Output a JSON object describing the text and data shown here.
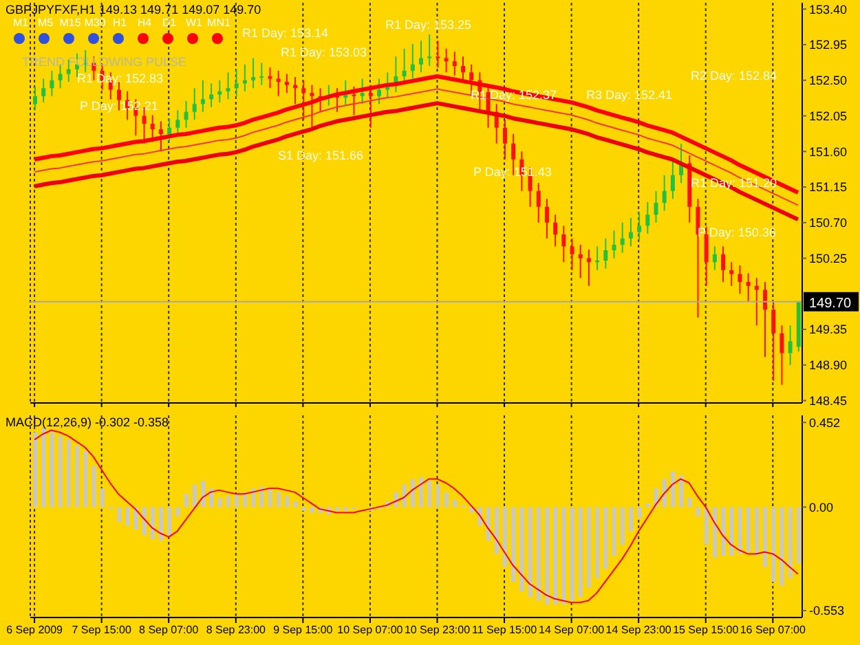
{
  "chart_data": [
    {
      "type": "candlestick",
      "title": "GBPJPYFXF,H1  149.13 149.71 149.07 149.70",
      "tick_labels": "y",
      "grid": "x",
      "categories": [
        null,
        null,
        null,
        null,
        null,
        null,
        null,
        null,
        null,
        null,
        null,
        null,
        null,
        null,
        null,
        null,
        null,
        null,
        null,
        null,
        null,
        null,
        null,
        null,
        null,
        null,
        null,
        null,
        null,
        null,
        null,
        null,
        null,
        null,
        null,
        null,
        null,
        null,
        null,
        null,
        null,
        null,
        null,
        null,
        null,
        null,
        null,
        null,
        null,
        null,
        null,
        null,
        null,
        null,
        null,
        null,
        null,
        null,
        null,
        null,
        null,
        null,
        null,
        null,
        null,
        null,
        null,
        null,
        null,
        null,
        null,
        null,
        null,
        null,
        null,
        null,
        null,
        null,
        null,
        null,
        null,
        null,
        null,
        null,
        null,
        null,
        null,
        null,
        null,
        null,
        null,
        null
      ],
      "ohlc": [
        [
          152.2,
          152.42,
          152.12,
          152.3
        ],
        [
          152.3,
          152.52,
          152.22,
          152.4
        ],
        [
          152.4,
          152.62,
          152.3,
          152.5
        ],
        [
          152.5,
          152.7,
          152.4,
          152.58
        ],
        [
          152.58,
          152.76,
          152.48,
          152.64
        ],
        [
          152.64,
          152.84,
          152.54,
          152.7
        ],
        [
          152.7,
          152.88,
          152.6,
          152.72
        ],
        [
          152.72,
          152.8,
          152.5,
          152.62
        ],
        [
          152.62,
          152.7,
          152.38,
          152.5
        ],
        [
          152.5,
          152.6,
          152.26,
          152.38
        ],
        [
          152.38,
          152.48,
          152.12,
          152.25
        ],
        [
          152.25,
          152.36,
          152.0,
          152.15
        ],
        [
          152.15,
          152.26,
          151.8,
          152.05
        ],
        [
          152.05,
          152.16,
          151.7,
          151.95
        ],
        [
          151.95,
          152.06,
          151.72,
          151.88
        ],
        [
          151.88,
          151.98,
          151.6,
          151.82
        ],
        [
          151.82,
          152.02,
          151.72,
          151.9
        ],
        [
          151.9,
          152.12,
          151.8,
          152.0
        ],
        [
          152.0,
          152.24,
          151.9,
          152.1
        ],
        [
          152.1,
          152.4,
          152.0,
          152.2
        ],
        [
          152.2,
          152.5,
          152.1,
          152.26
        ],
        [
          152.26,
          152.46,
          152.16,
          152.32
        ],
        [
          152.32,
          152.5,
          152.22,
          152.36
        ],
        [
          152.36,
          152.6,
          152.26,
          152.4
        ],
        [
          152.4,
          152.64,
          152.3,
          152.46
        ],
        [
          152.46,
          152.7,
          152.36,
          152.5
        ],
        [
          152.5,
          152.78,
          152.4,
          152.54
        ],
        [
          152.54,
          152.72,
          152.44,
          152.55
        ],
        [
          152.55,
          152.66,
          152.4,
          152.52
        ],
        [
          152.52,
          152.62,
          152.3,
          152.48
        ],
        [
          152.48,
          152.58,
          152.34,
          152.44
        ],
        [
          152.44,
          152.54,
          152.2,
          152.4
        ],
        [
          152.4,
          152.5,
          152.0,
          152.34
        ],
        [
          152.34,
          152.44,
          151.9,
          152.3
        ],
        [
          152.3,
          152.4,
          152.1,
          152.28
        ],
        [
          152.28,
          152.44,
          152.18,
          152.3
        ],
        [
          152.3,
          152.4,
          152.1,
          152.28
        ],
        [
          152.28,
          152.5,
          152.18,
          152.32
        ],
        [
          152.32,
          152.42,
          152.06,
          152.3
        ],
        [
          152.3,
          152.52,
          152.2,
          152.34
        ],
        [
          152.34,
          152.44,
          151.9,
          152.3
        ],
        [
          152.3,
          152.52,
          152.2,
          152.38
        ],
        [
          152.38,
          152.6,
          152.28,
          152.45
        ],
        [
          152.45,
          152.8,
          152.35,
          152.55
        ],
        [
          152.55,
          152.9,
          152.45,
          152.62
        ],
        [
          152.62,
          152.96,
          152.52,
          152.7
        ],
        [
          152.7,
          153.0,
          152.6,
          152.78
        ],
        [
          152.78,
          153.08,
          152.68,
          152.8
        ],
        [
          152.8,
          153.0,
          152.66,
          152.78
        ],
        [
          152.78,
          152.9,
          152.6,
          152.74
        ],
        [
          152.74,
          152.86,
          152.56,
          152.68
        ],
        [
          152.68,
          152.8,
          152.48,
          152.6
        ],
        [
          152.6,
          152.7,
          152.3,
          152.5
        ],
        [
          152.5,
          152.6,
          152.1,
          152.35
        ],
        [
          152.35,
          152.45,
          151.9,
          152.1
        ],
        [
          152.1,
          152.2,
          151.7,
          151.9
        ],
        [
          151.9,
          152.0,
          151.5,
          151.7
        ],
        [
          151.7,
          151.82,
          151.3,
          151.5
        ],
        [
          151.5,
          151.6,
          151.1,
          151.3
        ],
        [
          151.3,
          151.4,
          150.9,
          151.1
        ],
        [
          151.1,
          151.2,
          150.7,
          150.9
        ],
        [
          150.9,
          151.0,
          150.5,
          150.7
        ],
        [
          150.7,
          150.8,
          150.4,
          150.55
        ],
        [
          150.55,
          150.66,
          150.2,
          150.4
        ],
        [
          150.4,
          150.5,
          150.1,
          150.3
        ],
        [
          150.3,
          150.42,
          150.0,
          150.25
        ],
        [
          150.25,
          150.36,
          149.9,
          150.2
        ],
        [
          150.2,
          150.4,
          150.1,
          150.22
        ],
        [
          150.22,
          150.5,
          150.12,
          150.35
        ],
        [
          150.35,
          150.6,
          150.25,
          150.42
        ],
        [
          150.42,
          150.7,
          150.32,
          150.5
        ],
        [
          150.5,
          150.76,
          150.4,
          150.58
        ],
        [
          150.58,
          150.84,
          150.48,
          150.66
        ],
        [
          150.66,
          150.96,
          150.56,
          150.8
        ],
        [
          150.8,
          151.1,
          150.7,
          150.95
        ],
        [
          150.95,
          151.3,
          150.85,
          151.1
        ],
        [
          151.1,
          151.5,
          151.0,
          151.3
        ],
        [
          151.3,
          151.7,
          151.2,
          151.45
        ],
        [
          151.45,
          151.55,
          150.7,
          150.9
        ],
        [
          150.9,
          151.0,
          149.5,
          150.55
        ],
        [
          150.55,
          150.65,
          149.9,
          150.2
        ],
        [
          150.2,
          150.4,
          150.1,
          150.3
        ],
        [
          150.3,
          150.4,
          149.95,
          150.1
        ],
        [
          150.1,
          150.2,
          149.9,
          150.05
        ],
        [
          150.05,
          150.16,
          149.8,
          149.95
        ],
        [
          149.95,
          150.06,
          149.7,
          149.9
        ],
        [
          149.9,
          150.0,
          149.4,
          149.85
        ],
        [
          149.85,
          149.95,
          149.0,
          149.6
        ],
        [
          149.6,
          149.7,
          148.7,
          149.3
        ],
        [
          149.3,
          149.4,
          148.65,
          149.05
        ],
        [
          149.05,
          149.4,
          148.9,
          149.2
        ],
        [
          149.13,
          149.71,
          149.07,
          149.7
        ]
      ],
      "series": [
        {
          "type": "line",
          "color": "#ff0000",
          "values": [
            151.5,
            151.52,
            151.54,
            151.55,
            151.57,
            151.59,
            151.61,
            151.63,
            151.64,
            151.66,
            151.68,
            151.7,
            151.72,
            151.73,
            151.75,
            151.77,
            151.79,
            151.81,
            151.82,
            151.84,
            151.86,
            151.88,
            151.9,
            151.91,
            151.93,
            151.96,
            152.0,
            152.03,
            152.06,
            152.09,
            152.13,
            152.16,
            152.19,
            152.22,
            152.26,
            152.29,
            152.32,
            152.34,
            152.36,
            152.38,
            152.4,
            152.42,
            152.44,
            152.45,
            152.47,
            152.49,
            152.51,
            152.53,
            152.55,
            152.53,
            152.51,
            152.49,
            152.47,
            152.45,
            152.43,
            152.41,
            152.39,
            152.36,
            152.34,
            152.32,
            152.3,
            152.28,
            152.26,
            152.24,
            152.22,
            152.19,
            152.16,
            152.12,
            152.09,
            152.06,
            152.03,
            152.0,
            151.97,
            151.93,
            151.9,
            151.87,
            151.84,
            151.79,
            151.74,
            151.69,
            151.64,
            151.59,
            151.54,
            151.49,
            151.43,
            151.38,
            151.33,
            151.28,
            151.23,
            151.18,
            151.13,
            151.08
          ]
        },
        {
          "type": "line",
          "color": "#ff3030",
          "values": [
            151.34,
            151.36,
            151.38,
            151.39,
            151.41,
            151.43,
            151.45,
            151.47,
            151.48,
            151.5,
            151.52,
            151.54,
            151.56,
            151.57,
            151.59,
            151.61,
            151.63,
            151.65,
            151.66,
            151.68,
            151.7,
            151.72,
            151.74,
            151.75,
            151.77,
            151.8,
            151.84,
            151.87,
            151.9,
            151.93,
            151.97,
            152.0,
            152.03,
            152.06,
            152.1,
            152.13,
            152.16,
            152.18,
            152.2,
            152.22,
            152.24,
            152.26,
            152.28,
            152.29,
            152.31,
            152.33,
            152.35,
            152.37,
            152.39,
            152.37,
            152.35,
            152.33,
            152.31,
            152.29,
            152.27,
            152.25,
            152.23,
            152.2,
            152.18,
            152.16,
            152.14,
            152.12,
            152.1,
            152.08,
            152.06,
            152.03,
            152.0,
            151.96,
            151.93,
            151.9,
            151.87,
            151.84,
            151.81,
            151.77,
            151.74,
            151.71,
            151.68,
            151.63,
            151.58,
            151.53,
            151.48,
            151.43,
            151.38,
            151.33,
            151.27,
            151.22,
            151.17,
            151.12,
            151.07,
            151.02,
            150.97,
            150.92
          ]
        },
        {
          "type": "line",
          "color": "#ee0000",
          "values": [
            151.16,
            151.18,
            151.2,
            151.21,
            151.23,
            151.25,
            151.27,
            151.29,
            151.3,
            151.32,
            151.34,
            151.36,
            151.38,
            151.39,
            151.41,
            151.43,
            151.45,
            151.47,
            151.48,
            151.5,
            151.52,
            151.54,
            151.56,
            151.57,
            151.59,
            151.62,
            151.66,
            151.69,
            151.72,
            151.75,
            151.79,
            151.82,
            151.85,
            151.88,
            151.92,
            151.95,
            151.98,
            152.0,
            152.02,
            152.04,
            152.06,
            152.08,
            152.1,
            152.11,
            152.13,
            152.15,
            152.17,
            152.19,
            152.21,
            152.19,
            152.17,
            152.15,
            152.13,
            152.11,
            152.09,
            152.07,
            152.05,
            152.02,
            152.0,
            151.98,
            151.96,
            151.94,
            151.92,
            151.9,
            151.88,
            151.85,
            151.82,
            151.78,
            151.75,
            151.72,
            151.69,
            151.66,
            151.63,
            151.59,
            151.56,
            151.53,
            151.5,
            151.45,
            151.4,
            151.35,
            151.3,
            151.25,
            151.2,
            151.15,
            151.09,
            151.04,
            150.99,
            150.94,
            150.89,
            150.84,
            150.79,
            150.74
          ]
        }
      ],
      "ylim": [
        148.42,
        153.48
      ],
      "yticks": [
        {
          "value": 153.4,
          "label": "153.40"
        },
        152.95,
        {
          "value": 152.5,
          "label": "152.50"
        },
        152.05,
        {
          "value": 151.6,
          "label": "151.60"
        },
        151.15,
        {
          "value": 150.7,
          "label": "150.70"
        },
        150.25,
        149.35,
        {
          "value": 148.9,
          "label": "148.90"
        },
        148.45
      ],
      "ref_lines": [
        {
          "axis": "y",
          "value": 149.7,
          "label": "149.70",
          "color": "#a8a8a8"
        }
      ],
      "annotations": [
        "M1",
        "M5",
        "M15",
        "M30",
        "H1",
        "H4",
        "D1",
        "W1",
        "MN1",
        "TREND FOLLOWING PULSE",
        "R1 Day: 152.83",
        "R1 Day: 153.14",
        "R1 Day: 153.03",
        "R1 Day: 153.25",
        "R1 Day: 152.37",
        "R3 Day: 152.41",
        "R2 Day: 152.84",
        "R1 Day: 151.20",
        "P Day: 151.43",
        "P Day: 152.21",
        "P Day: 150.36",
        "S1 Day: 151.66"
      ]
    },
    {
      "type": "bar",
      "title": "MACD(12,26,9) -0.302 -0.358",
      "grid": "x",
      "categories": [
        "6 Sep 2009",
        null,
        null,
        null,
        null,
        null,
        null,
        null,
        "7 Sep 15:00",
        null,
        null,
        null,
        null,
        null,
        null,
        null,
        "8 Sep 07:00",
        null,
        null,
        null,
        null,
        null,
        null,
        null,
        "8 Sep 23:00",
        null,
        null,
        null,
        null,
        null,
        null,
        null,
        "9 Sep 15:00",
        null,
        null,
        null,
        null,
        null,
        null,
        null,
        "10 Sep 07:00",
        null,
        null,
        null,
        null,
        null,
        null,
        null,
        "10 Sep 23:00",
        null,
        null,
        null,
        null,
        null,
        null,
        null,
        "11 Sep 15:00",
        null,
        null,
        null,
        null,
        null,
        null,
        null,
        "14 Sep 07:00",
        null,
        null,
        null,
        null,
        null,
        null,
        null,
        "14 Sep 23:00",
        null,
        null,
        null,
        null,
        null,
        null,
        null,
        "15 Sep 15:00",
        null,
        null,
        null,
        null,
        null,
        null,
        null,
        "16 Sep 07:00",
        null,
        null,
        null
      ],
      "series": [
        {
          "color": "#c8c8c8",
          "values": [
            0.4,
            0.42,
            0.4,
            0.38,
            0.36,
            0.33,
            0.3,
            0.22,
            0.1,
            -0.01,
            -0.08,
            -0.1,
            -0.12,
            -0.15,
            -0.17,
            -0.18,
            -0.15,
            -0.05,
            0.07,
            0.12,
            0.14,
            0.1,
            0.05,
            0.06,
            0.07,
            0.08,
            0.1,
            0.11,
            0.1,
            0.08,
            0.06,
            0.03,
            -0.02,
            -0.03,
            -0.03,
            -0.04,
            -0.02,
            -0.02,
            -0.01,
            0.0,
            -0.02,
            -0.01,
            0.03,
            0.08,
            0.12,
            0.15,
            0.16,
            0.14,
            0.12,
            0.08,
            0.04,
            0.01,
            -0.03,
            -0.1,
            -0.18,
            -0.25,
            -0.32,
            -0.4,
            -0.45,
            -0.48,
            -0.5,
            -0.52,
            -0.52,
            -0.52,
            -0.5,
            -0.48,
            -0.43,
            -0.38,
            -0.33,
            -0.26,
            -0.2,
            -0.13,
            -0.06,
            0.02,
            0.1,
            0.15,
            0.19,
            0.17,
            0.05,
            -0.05,
            -0.2,
            -0.27,
            -0.26,
            -0.26,
            -0.25,
            -0.24,
            -0.26,
            -0.32,
            -0.4,
            -0.42,
            -0.38,
            -0.302
          ]
        },
        {
          "type": "line",
          "color": "#ff0000",
          "values": [
            0.36,
            0.39,
            0.41,
            0.4,
            0.38,
            0.35,
            0.32,
            0.27,
            0.2,
            0.13,
            0.07,
            0.03,
            -0.01,
            -0.06,
            -0.11,
            -0.14,
            -0.16,
            -0.13,
            -0.07,
            -0.01,
            0.05,
            0.08,
            0.09,
            0.08,
            0.07,
            0.07,
            0.08,
            0.09,
            0.1,
            0.1,
            0.09,
            0.08,
            0.05,
            0.02,
            -0.01,
            -0.02,
            -0.03,
            -0.03,
            -0.03,
            -0.02,
            -0.01,
            0.0,
            0.01,
            0.03,
            0.05,
            0.09,
            0.12,
            0.15,
            0.15,
            0.13,
            0.1,
            0.06,
            0.01,
            -0.04,
            -0.11,
            -0.17,
            -0.24,
            -0.31,
            -0.36,
            -0.41,
            -0.44,
            -0.47,
            -0.49,
            -0.5,
            -0.51,
            -0.51,
            -0.5,
            -0.46,
            -0.4,
            -0.34,
            -0.28,
            -0.21,
            -0.13,
            -0.06,
            0.01,
            0.07,
            0.12,
            0.15,
            0.13,
            0.06,
            0.0,
            -0.08,
            -0.15,
            -0.2,
            -0.23,
            -0.25,
            -0.25,
            -0.24,
            -0.25,
            -0.28,
            -0.32,
            -0.358
          ]
        }
      ],
      "ylim": [
        -0.59,
        0.49
      ],
      "yticks": [
        0.452,
        {
          "value": 0,
          "label": "0.00"
        },
        -0.553
      ]
    }
  ]
}
